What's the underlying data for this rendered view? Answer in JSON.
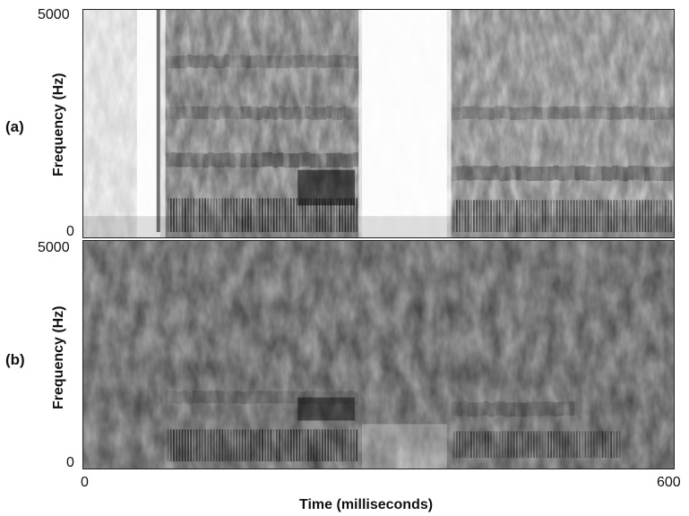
{
  "chart_data": [
    {
      "type": "heatmap",
      "panel": "(a)",
      "ylabel": "Frequency (Hz)",
      "ylim": [
        0,
        5000
      ],
      "yticks": [
        "0",
        "5000"
      ],
      "xlim": [
        0,
        600
      ]
    },
    {
      "type": "heatmap",
      "panel": "(b)",
      "ylabel": "Frequency (Hz)",
      "ylim": [
        0,
        5000
      ],
      "yticks": [
        "0",
        "5000"
      ],
      "xlabel": "Time (milliseconds)",
      "xlim": [
        0,
        600
      ],
      "xticks": [
        "0",
        "600"
      ]
    }
  ],
  "colors": {
    "ink": "#111111",
    "background": "#ffffff"
  }
}
